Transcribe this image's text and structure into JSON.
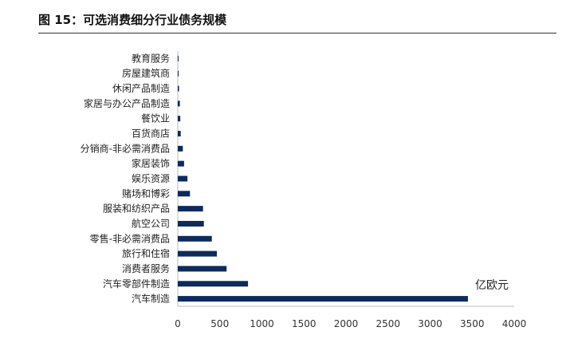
{
  "figure_title": "图 15：可选消费细分行业债务规模",
  "chart_data": {
    "type": "bar",
    "orientation": "horizontal",
    "categories": [
      "教育服务",
      "房屋建筑商",
      "休闲产品制造",
      "家居与办公产品制造",
      "餐饮业",
      "百货商店",
      "分销商-非必需消费品",
      "家居装饰",
      "娱乐资源",
      "赌场和博彩",
      "服装和纺织产品",
      "航空公司",
      "零售-非必需消费品",
      "旅行和住宿",
      "消费者服务",
      "汽车零部件制造",
      "汽车制造"
    ],
    "values": [
      8,
      10,
      15,
      25,
      30,
      35,
      60,
      75,
      115,
      145,
      300,
      310,
      405,
      465,
      580,
      835,
      3450
    ],
    "xlim": [
      0,
      4000
    ],
    "xticks": [
      "0",
      "500",
      "1000",
      "1500",
      "2000",
      "2500",
      "3000",
      "3500",
      "4000"
    ],
    "unit_label": "亿欧元",
    "bar_color": "#0d2a5c",
    "grid": false,
    "legend": "none"
  }
}
